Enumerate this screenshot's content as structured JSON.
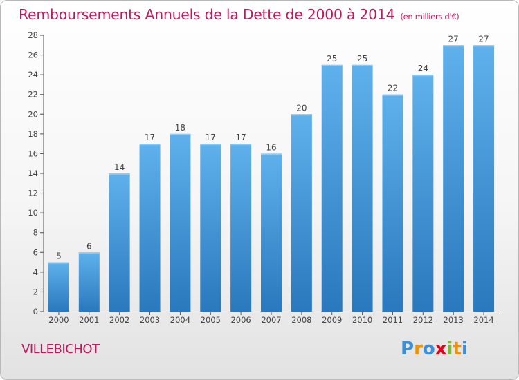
{
  "title": "Remboursements Annuels de la Dette de 2000 à 2014",
  "subtitle": "(en milliers d'€)",
  "commune": "VILLEBICHOT",
  "logo": {
    "letters": [
      "P",
      "r",
      "o",
      "x",
      "i",
      "t",
      "i"
    ],
    "colors": [
      "#3a8fd8",
      "#f39200",
      "#3a8fd8",
      "#e2001a",
      "#7ab929",
      "#f39200",
      "#3a8fd8"
    ]
  },
  "colors": {
    "bar": "#4a9ee0",
    "title": "#c2185b",
    "axis": "#555555"
  },
  "chart_data": {
    "type": "bar",
    "categories": [
      "2000",
      "2001",
      "2002",
      "2003",
      "2004",
      "2005",
      "2006",
      "2007",
      "2008",
      "2009",
      "2010",
      "2011",
      "2012",
      "2013",
      "2014"
    ],
    "values": [
      5,
      6,
      14,
      17,
      18,
      17,
      17,
      16,
      20,
      25,
      25,
      22,
      24,
      27,
      27
    ],
    "ylim": [
      0,
      28
    ],
    "yticks": [
      0,
      2,
      4,
      6,
      8,
      10,
      12,
      14,
      16,
      18,
      20,
      22,
      24,
      26,
      28
    ],
    "grid": false,
    "data_labels": true
  }
}
